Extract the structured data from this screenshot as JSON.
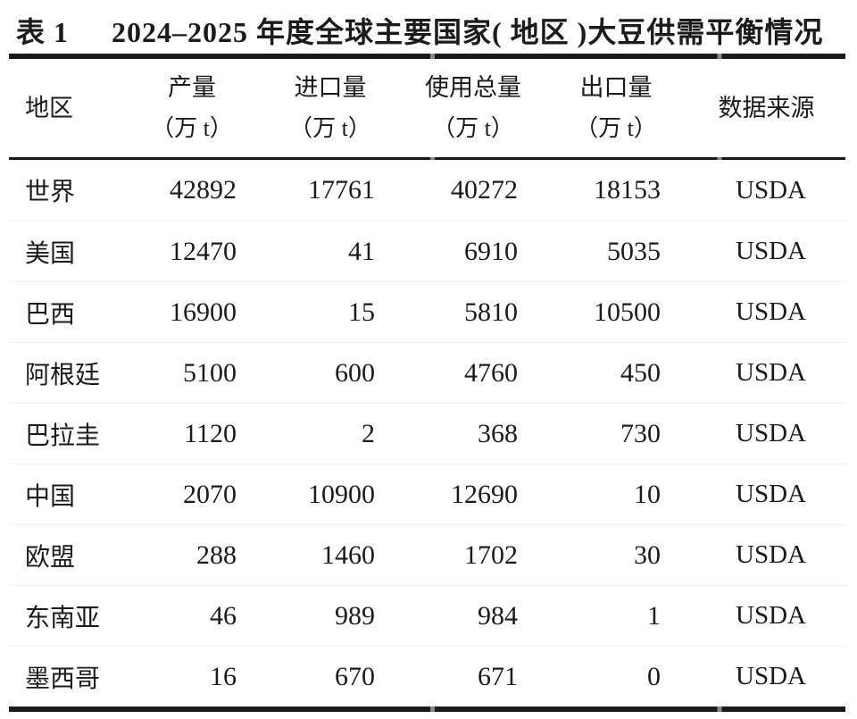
{
  "page": {
    "title_label": "表 1",
    "title": "2024–2025 年度全球主要国家( 地区 )大豆供需平衡情况"
  },
  "table": {
    "columns": {
      "region": "地区",
      "production": "产量",
      "imports": "进口量",
      "total_use": "使用总量",
      "exports": "出口量",
      "source": "数据来源",
      "unit": "（万 t）"
    },
    "rows": [
      {
        "region": "世界",
        "production": "42892",
        "imports": "17761",
        "total_use": "40272",
        "exports": "18153",
        "source": "USDA"
      },
      {
        "region": "美国",
        "production": "12470",
        "imports": "41",
        "total_use": "6910",
        "exports": "5035",
        "source": "USDA"
      },
      {
        "region": "巴西",
        "production": "16900",
        "imports": "15",
        "total_use": "5810",
        "exports": "10500",
        "source": "USDA"
      },
      {
        "region": "阿根廷",
        "production": "5100",
        "imports": "600",
        "total_use": "4760",
        "exports": "450",
        "source": "USDA"
      },
      {
        "region": "巴拉圭",
        "production": "1120",
        "imports": "2",
        "total_use": "368",
        "exports": "730",
        "source": "USDA"
      },
      {
        "region": "中国",
        "production": "2070",
        "imports": "10900",
        "total_use": "12690",
        "exports": "10",
        "source": "USDA"
      },
      {
        "region": "欧盟",
        "production": "288",
        "imports": "1460",
        "total_use": "1702",
        "exports": "30",
        "source": "USDA"
      },
      {
        "region": "东南亚",
        "production": "46",
        "imports": "989",
        "total_use": "984",
        "exports": "1",
        "source": "USDA"
      },
      {
        "region": "墨西哥",
        "production": "16",
        "imports": "670",
        "total_use": "671",
        "exports": "0",
        "source": "USDA"
      }
    ]
  },
  "colors": {
    "text": "#1b1b1b",
    "rule": "#1a1a1a",
    "background": "#ffffff"
  }
}
